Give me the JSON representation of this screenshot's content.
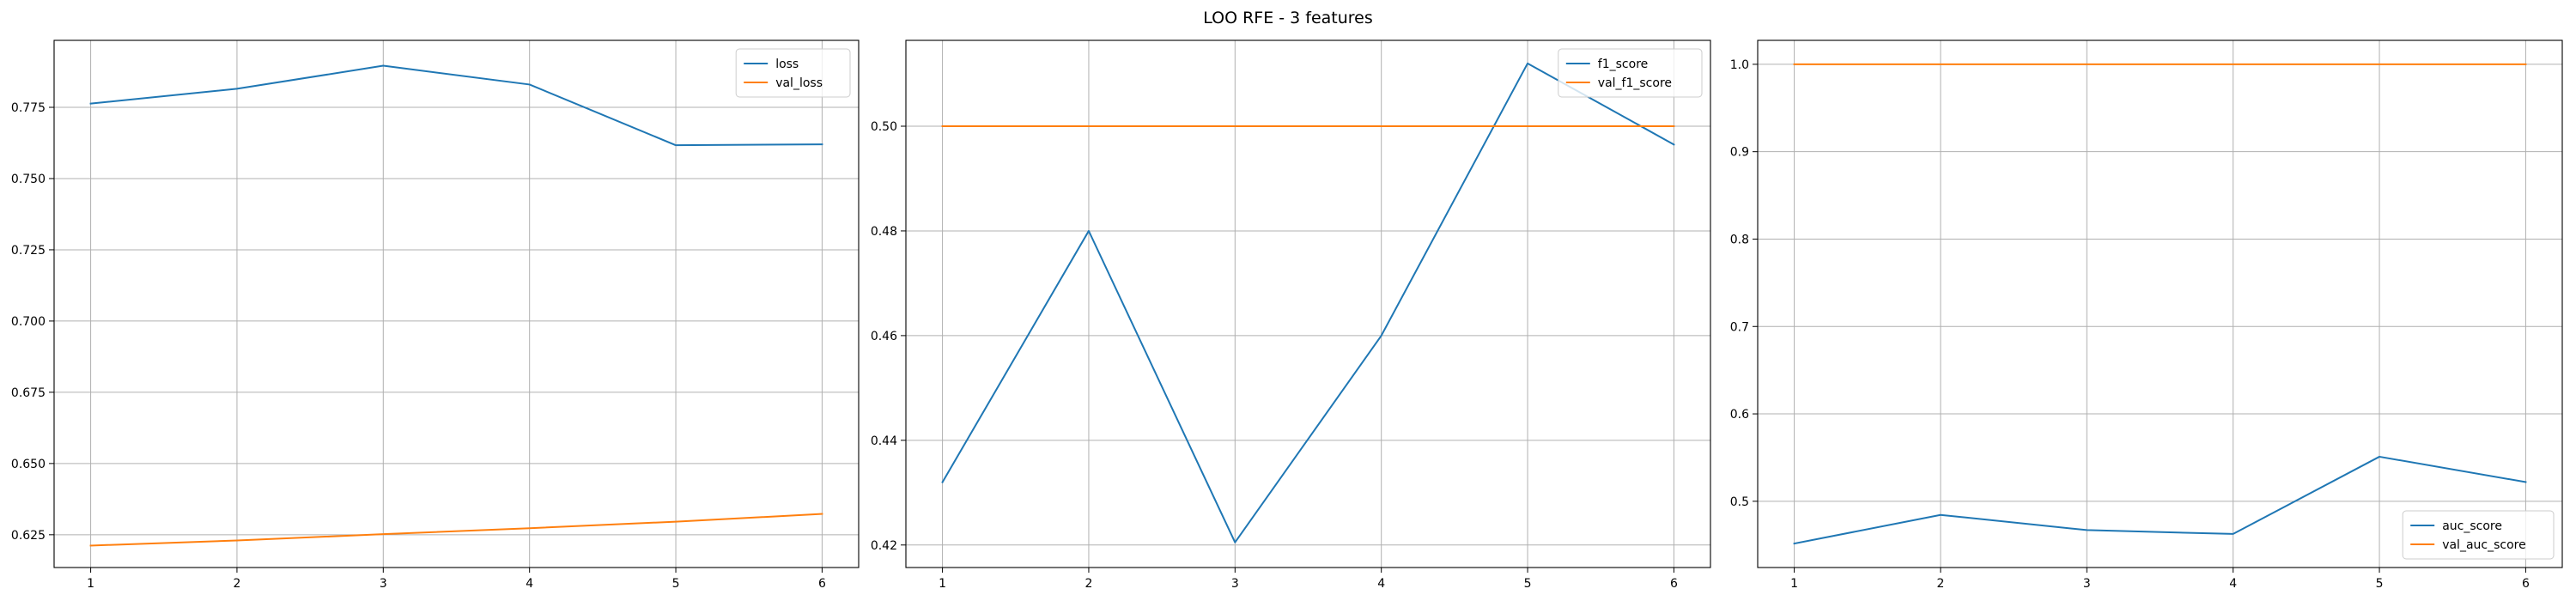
{
  "figure": {
    "title": "LOO RFE - 3 features"
  },
  "colors": {
    "train": "#1f77b4",
    "val": "#ff7f0e"
  },
  "chart_data": [
    {
      "type": "line",
      "x": [
        1,
        2,
        3,
        4,
        5,
        6
      ],
      "xticks": [
        1,
        2,
        3,
        4,
        5,
        6
      ],
      "xlim": [
        0.75,
        6.25
      ],
      "ylim": [
        0.6135,
        0.7985
      ],
      "yticks": [
        0.625,
        0.65,
        0.675,
        0.7,
        0.725,
        0.75,
        0.775
      ],
      "yticklabels": [
        "0.625",
        "0.650",
        "0.675",
        "0.700",
        "0.725",
        "0.750",
        "0.775"
      ],
      "grid": true,
      "legend_position": "upper right",
      "series": [
        {
          "name": "loss",
          "color": "#1f77b4",
          "values": [
            0.7763,
            0.7815,
            0.7896,
            0.783,
            0.7617,
            0.762
          ]
        },
        {
          "name": "val_loss",
          "color": "#ff7f0e",
          "values": [
            0.6212,
            0.623,
            0.6252,
            0.6273,
            0.6296,
            0.6323
          ]
        }
      ]
    },
    {
      "type": "line",
      "x": [
        1,
        2,
        3,
        4,
        5,
        6
      ],
      "xticks": [
        1,
        2,
        3,
        4,
        5,
        6
      ],
      "xlim": [
        0.75,
        6.25
      ],
      "ylim": [
        0.4157,
        0.5164
      ],
      "yticks": [
        0.42,
        0.44,
        0.46,
        0.48,
        0.5
      ],
      "yticklabels": [
        "0.42",
        "0.44",
        "0.46",
        "0.48",
        "0.50"
      ],
      "grid": true,
      "legend_position": "upper right",
      "series": [
        {
          "name": "f1_score",
          "color": "#1f77b4",
          "values": [
            0.432,
            0.48,
            0.4205,
            0.46,
            0.512,
            0.4965
          ]
        },
        {
          "name": "val_f1_score",
          "color": "#ff7f0e",
          "values": [
            0.5,
            0.5,
            0.5,
            0.5,
            0.5,
            0.5
          ]
        }
      ]
    },
    {
      "type": "line",
      "x": [
        1,
        2,
        3,
        4,
        5,
        6
      ],
      "xticks": [
        1,
        2,
        3,
        4,
        5,
        6
      ],
      "xlim": [
        0.75,
        6.25
      ],
      "ylim": [
        0.4242,
        1.0274
      ],
      "yticks": [
        0.5,
        0.6,
        0.7,
        0.8,
        0.9,
        1.0
      ],
      "yticklabels": [
        "0.5",
        "0.6",
        "0.7",
        "0.8",
        "0.9",
        "1.0"
      ],
      "grid": true,
      "legend_position": "lower right",
      "series": [
        {
          "name": "auc_score",
          "color": "#1f77b4",
          "values": [
            0.4516,
            0.4844,
            0.467,
            0.4626,
            0.551,
            0.522
          ]
        },
        {
          "name": "val_auc_score",
          "color": "#ff7f0e",
          "values": [
            1.0,
            1.0,
            1.0,
            1.0,
            1.0,
            1.0
          ]
        }
      ]
    }
  ]
}
